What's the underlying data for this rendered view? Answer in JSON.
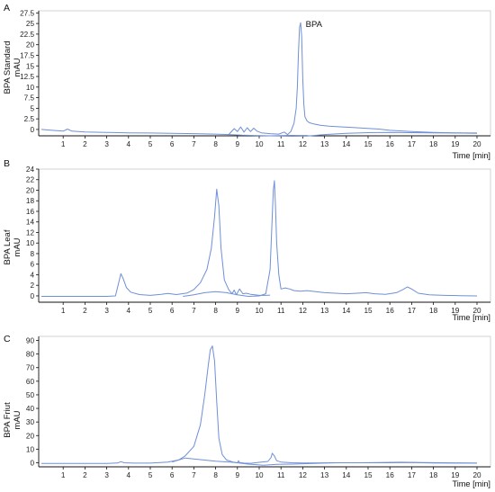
{
  "colors": {
    "trace": "#6f8fd8",
    "axis": "#111111",
    "frame": "#c8c8c8"
  },
  "chart_data": [
    {
      "type": "line",
      "panel_letter": "A",
      "ylabel": [
        "BPA Standard",
        "mAU"
      ],
      "xlabel": "Time [min]",
      "xlim": [
        0,
        20
      ],
      "xticks": [
        "1",
        "2",
        "3",
        "4",
        "5",
        "6",
        "7",
        "8",
        "9",
        "10",
        "11",
        "12",
        "13",
        "14",
        "15",
        "16",
        "17",
        "18",
        "19",
        "20"
      ],
      "ylim": [
        -1.5,
        28
      ],
      "yticks": [
        "0",
        "2.5",
        "5",
        "7.5",
        "10",
        "12.5",
        "15",
        "17.5",
        "20",
        "22.5",
        "25",
        "27.5"
      ],
      "annotations": [
        {
          "text": "BPA",
          "x": 12.05,
          "y": 25
        }
      ],
      "series": [
        {
          "x": [
            0,
            0.5,
            1.0,
            1.2,
            1.4,
            2,
            3,
            4,
            5,
            6,
            7,
            8,
            8.6,
            8.85,
            9.0,
            9.15,
            9.3,
            9.45,
            9.6,
            9.75,
            9.9,
            10.1,
            10.5,
            10.9,
            11.15,
            11.3,
            11.45,
            11.6,
            11.7,
            11.75,
            11.8,
            11.85,
            11.9,
            11.95,
            12.0,
            12.05,
            12.1,
            12.2,
            12.3,
            12.5,
            12.8,
            13.2,
            13.8,
            14.3,
            14.8,
            15.5,
            16,
            17,
            18,
            19,
            20
          ],
          "y": [
            0,
            -0.2,
            -0.4,
            0.1,
            -0.4,
            -0.6,
            -0.7,
            -0.8,
            -0.85,
            -0.9,
            -1.0,
            -1.1,
            -1.2,
            0.2,
            -0.5,
            0.6,
            -0.6,
            0.4,
            -0.5,
            0.3,
            -0.4,
            -0.8,
            -1.0,
            -1.1,
            -0.6,
            -1.2,
            -0.5,
            1.5,
            5,
            10,
            18,
            24,
            25.2,
            22,
            12,
            6,
            3,
            2,
            1.6,
            1.3,
            1.0,
            0.8,
            0.6,
            0.45,
            0.3,
            0.1,
            -0.2,
            -0.5,
            -0.7,
            -0.8,
            -0.85
          ]
        },
        {
          "x": [
            8.6,
            9.2,
            10.0,
            11.0,
            11.5,
            12.2,
            13,
            14,
            15,
            16,
            17,
            18,
            19,
            20
          ],
          "y": [
            -1.2,
            -1.35,
            -1.45,
            -1.55,
            -1.6,
            -1.55,
            -1.2,
            -0.9,
            -0.75,
            -0.7,
            -0.75,
            -0.8,
            -0.85,
            -0.9
          ]
        }
      ]
    },
    {
      "type": "line",
      "panel_letter": "B",
      "ylabel": [
        "BPA Leaf",
        "mAU"
      ],
      "xlabel": "Time [min]",
      "xlim": [
        0,
        20
      ],
      "xticks": [
        "1",
        "2",
        "3",
        "4",
        "5",
        "6",
        "7",
        "8",
        "9",
        "10",
        "11",
        "12",
        "13",
        "14",
        "15",
        "16",
        "17",
        "18",
        "19",
        "20"
      ],
      "ylim": [
        -1.2,
        24
      ],
      "yticks": [
        "0",
        "2",
        "4",
        "6",
        "8",
        "10",
        "12",
        "14",
        "16",
        "18",
        "20",
        "22",
        "24"
      ],
      "annotations": [],
      "series": [
        {
          "x": [
            0,
            1,
            2,
            3,
            3.4,
            3.55,
            3.65,
            3.75,
            3.9,
            4.1,
            4.5,
            5,
            5.5,
            5.8,
            6.2,
            6.7,
            7.0,
            7.3,
            7.6,
            7.8,
            7.95,
            8.05,
            8.15,
            8.25,
            8.4,
            8.6,
            8.75,
            8.85,
            8.95,
            9.1,
            9.25,
            9.4,
            9.6,
            9.8,
            10.0,
            10.3,
            10.5
          ],
          "y": [
            -0.1,
            -0.1,
            -0.1,
            -0.1,
            0.0,
            2.5,
            4.2,
            3.3,
            1.6,
            0.7,
            0.25,
            0.1,
            0.3,
            0.45,
            0.25,
            0.55,
            1.2,
            2.5,
            5,
            9,
            15,
            20.2,
            17,
            9,
            3,
            1.2,
            0.4,
            1.1,
            0.2,
            1.3,
            0.4,
            0.5,
            0.3,
            0.2,
            0.1,
            0.1,
            0.15
          ]
        },
        {
          "x": [
            6.5,
            7.0,
            7.5,
            8.0,
            8.5,
            9.0,
            9.5,
            10.0,
            10.3,
            10.5,
            10.6,
            10.65,
            10.7,
            10.75,
            10.8,
            10.9,
            11.0,
            11.2,
            11.4,
            11.6,
            11.9,
            12.2,
            12.6,
            13.0,
            13.5,
            14.0,
            14.5,
            14.9,
            15.3,
            15.8,
            16.3,
            16.6,
            16.8,
            17.0,
            17.3,
            17.8,
            18.5,
            19.2,
            20
          ],
          "y": [
            -0.1,
            0.2,
            0.6,
            0.8,
            0.6,
            0.2,
            -0.1,
            0.0,
            0.4,
            5,
            15,
            20,
            21.8,
            17,
            10,
            4,
            1.3,
            1.5,
            1.3,
            1.0,
            0.9,
            1.0,
            0.8,
            0.6,
            0.5,
            0.4,
            0.5,
            0.6,
            0.4,
            0.3,
            0.6,
            1.2,
            1.7,
            1.3,
            0.5,
            0.2,
            0.1,
            0.05,
            0.0
          ]
        }
      ]
    },
    {
      "type": "line",
      "panel_letter": "C",
      "ylabel": [
        "BPA Friut",
        "mAU"
      ],
      "xlabel": "Time [min]",
      "xlim": [
        0,
        20
      ],
      "xticks": [
        "1",
        "2",
        "3",
        "4",
        "5",
        "6",
        "7",
        "8",
        "9",
        "10",
        "11",
        "12",
        "13",
        "14",
        "15",
        "16",
        "17",
        "18",
        "19",
        "20"
      ],
      "ylim": [
        -3,
        93
      ],
      "yticks": [
        "0",
        "10",
        "20",
        "30",
        "40",
        "50",
        "60",
        "70",
        "80",
        "90"
      ],
      "annotations": [],
      "series": [
        {
          "x": [
            0,
            1,
            2,
            3,
            3.5,
            3.65,
            3.8,
            4.2,
            5,
            5.8,
            6.3,
            6.6,
            7.0,
            7.3,
            7.5,
            7.65,
            7.75,
            7.85,
            7.95,
            8.05,
            8.15,
            8.3,
            8.5,
            8.8,
            9.0,
            9.05,
            9.1,
            9.3,
            9.6,
            10.0,
            10.4,
            10.55,
            10.6,
            10.7,
            10.8,
            11.0,
            11.5,
            12,
            13,
            14,
            15,
            16,
            17,
            18,
            19,
            20
          ],
          "y": [
            -0.5,
            -0.5,
            -0.5,
            -0.5,
            -0.2,
            0.8,
            0.0,
            -0.3,
            -0.3,
            0.5,
            2,
            5,
            12,
            28,
            50,
            70,
            83,
            86,
            75,
            45,
            18,
            6,
            2,
            0.5,
            0.0,
            1.5,
            0.2,
            -0.3,
            -0.4,
            0.3,
            1,
            4,
            7,
            5,
            1.5,
            0.5,
            0.0,
            -0.2,
            -0.1,
            0.0,
            0.0,
            0.0,
            0.2,
            -0.2,
            -0.3,
            -0.3
          ]
        },
        {
          "x": [
            6.0,
            6.6,
            7.2,
            8.0,
            8.8,
            9.5,
            10.2,
            10.8,
            11.5,
            12.5,
            13.5,
            14.5,
            15.5,
            16.5,
            17.5,
            18.5,
            19.5,
            20
          ],
          "y": [
            0.5,
            3.5,
            2.5,
            1.2,
            0.3,
            -1.0,
            -1.8,
            -1.2,
            -1.0,
            -0.5,
            0.0,
            0.0,
            0.1,
            0.4,
            0.2,
            0.0,
            -0.2,
            -0.3
          ]
        }
      ]
    }
  ]
}
